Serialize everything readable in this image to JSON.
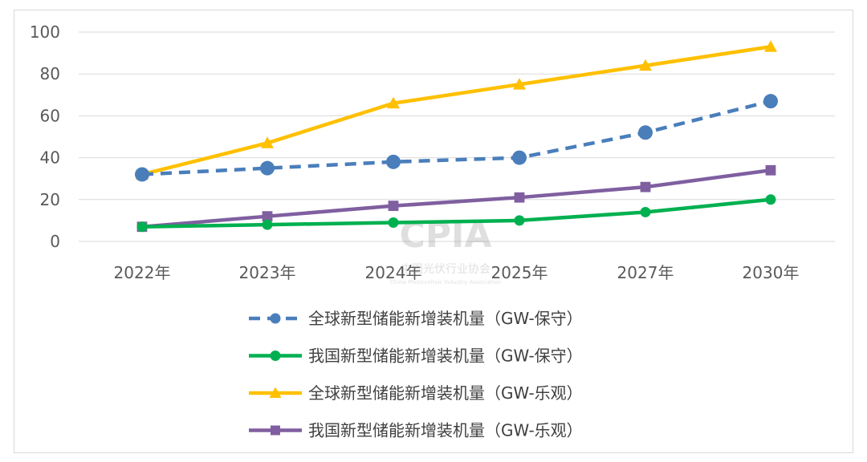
{
  "chart_data": {
    "type": "line",
    "title": "",
    "xlabel": "",
    "ylabel": "",
    "categories": [
      "2022年",
      "2023年",
      "2024年",
      "2025年",
      "2027年",
      "2030年"
    ],
    "ylim": [
      0,
      100
    ],
    "yticks": [
      "0",
      "20",
      "40",
      "60",
      "80",
      "100"
    ],
    "grid": true,
    "legend_position": "bottom",
    "series": [
      {
        "name": "全球新型储能新增装机量（GW-保守）",
        "color": "#4a7ebb",
        "dash": true,
        "marker": "circle",
        "values": [
          32,
          35,
          38,
          40,
          52,
          67
        ]
      },
      {
        "name": "我国新型储能新增装机量（GW-保守）",
        "color": "#00b050",
        "dash": false,
        "marker": "circle",
        "values": [
          7,
          8,
          9,
          10,
          14,
          20
        ]
      },
      {
        "name": "全球新型储能新增装机量（GW-乐观）",
        "color": "#ffc000",
        "dash": false,
        "marker": "triangle",
        "values": [
          32,
          47,
          66,
          75,
          84,
          93
        ]
      },
      {
        "name": "我国新型储能新增装机量（GW-乐观）",
        "color": "#7f5fa0",
        "dash": false,
        "marker": "square",
        "values": [
          7,
          12,
          17,
          21,
          26,
          34
        ]
      }
    ]
  },
  "watermark": {
    "logo": "CPIA",
    "name_cn": "中国光伏行业协会",
    "name_en": "China Photovoltaic Industry Association"
  }
}
